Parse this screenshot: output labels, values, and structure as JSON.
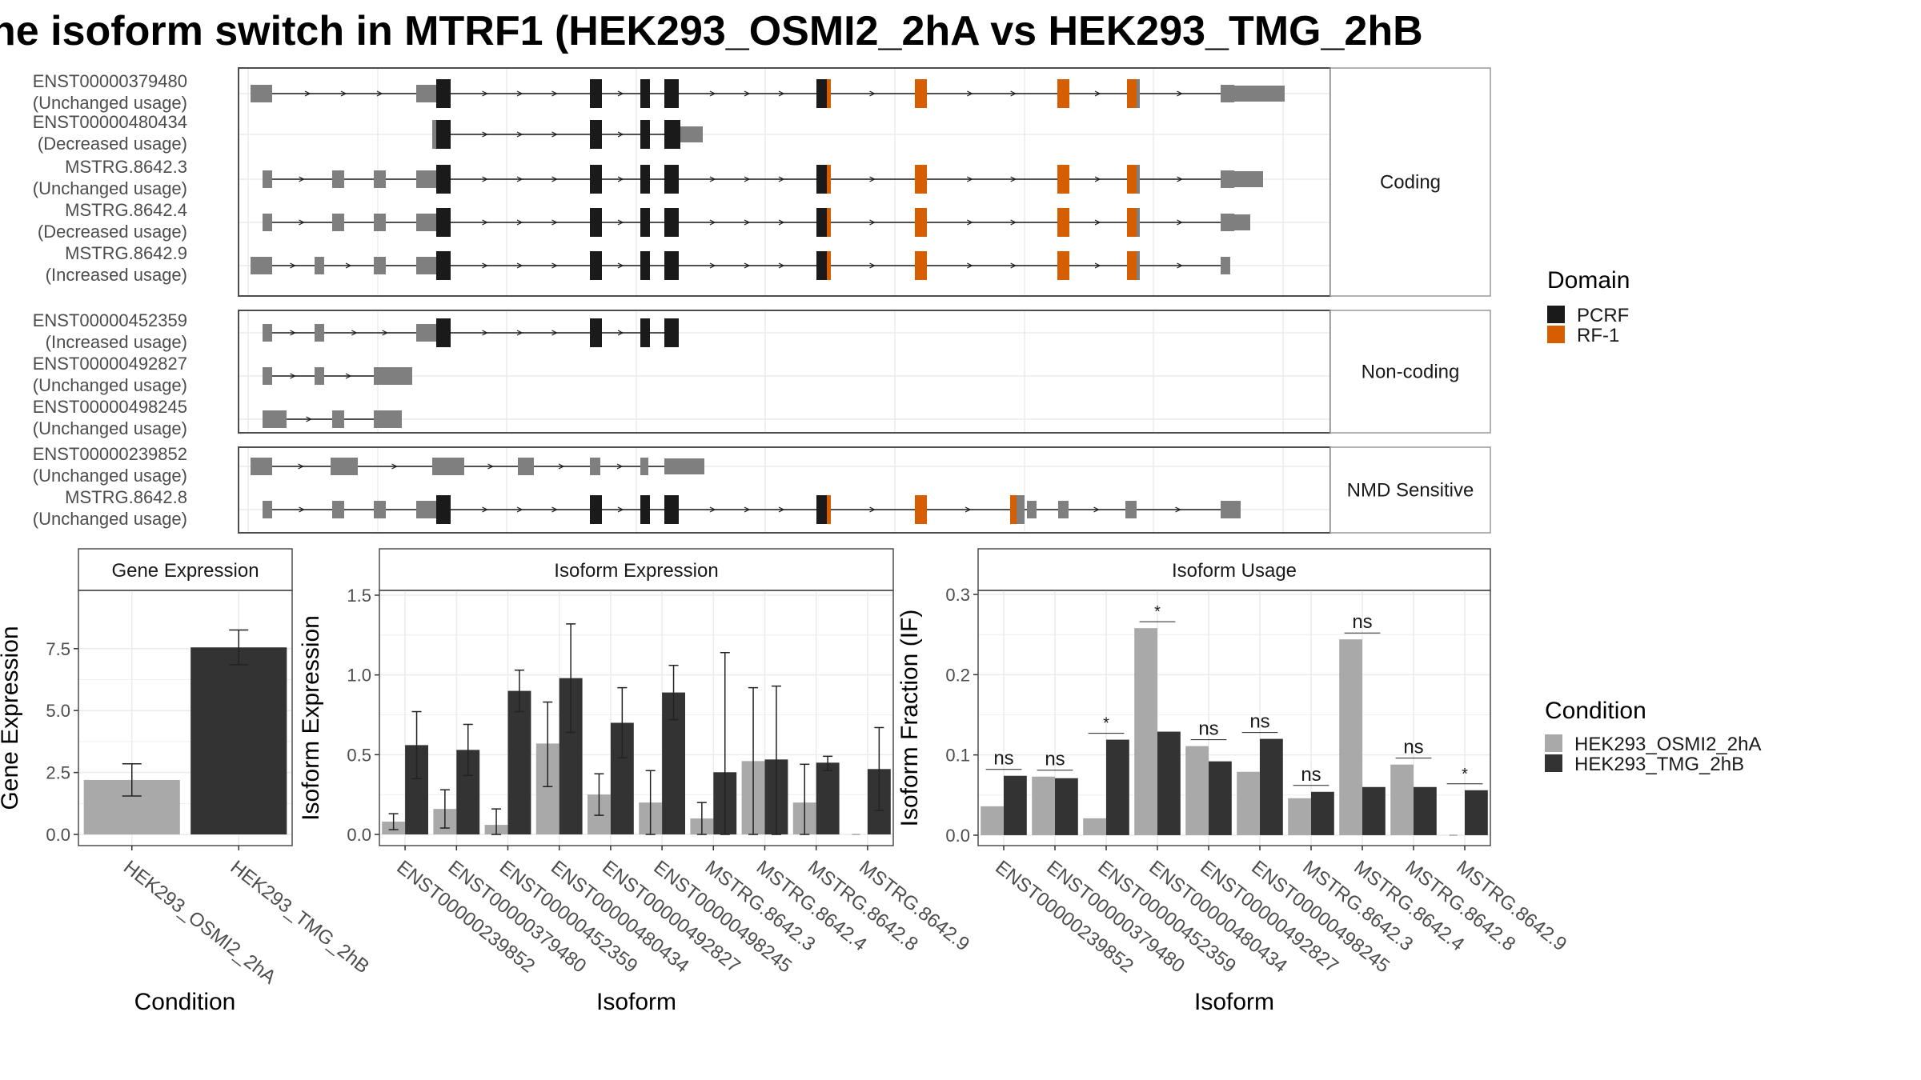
{
  "title": "he isoform switch in MTRF1 (HEK293_OSMI2_2hA vs HEK293_TMG_2hB",
  "colors": {
    "intron": "#1a1a1a",
    "noncoding_exon": "#7f7f7f",
    "pcrf": "#1a1a1a",
    "rf1": "#d55e00",
    "osmi2": "#a9a9a9",
    "tmg": "#333333",
    "panel_border": "#4d4d4d",
    "strip_fill": "#ffffff",
    "grid": "#ebebeb"
  },
  "domain_legend": {
    "title": "Domain",
    "items": [
      {
        "label": "PCRF",
        "color": "#1a1a1a"
      },
      {
        "label": "RF-1",
        "color": "#d55e00"
      }
    ]
  },
  "condition_legend": {
    "title": "Condition",
    "items": [
      {
        "label": "HEK293_OSMI2_2hA",
        "color": "#a9a9a9"
      },
      {
        "label": "HEK293_TMG_2hB",
        "color": "#333333"
      }
    ]
  },
  "transcript_panels": [
    {
      "strip": "Coding",
      "transcripts": [
        {
          "name": "ENST00000379480",
          "status": "(Unchanged usage)"
        },
        {
          "name": "ENST00000480434",
          "status": "(Decreased usage)"
        },
        {
          "name": "MSTRG.8642.3",
          "status": "(Unchanged usage)"
        },
        {
          "name": "MSTRG.8642.4",
          "status": "(Decreased usage)"
        },
        {
          "name": "MSTRG.8642.9",
          "status": "(Increased usage)"
        }
      ]
    },
    {
      "strip": "Non-coding",
      "transcripts": [
        {
          "name": "ENST00000452359",
          "status": "(Increased usage)"
        },
        {
          "name": "ENST00000492827",
          "status": "(Unchanged usage)"
        },
        {
          "name": "ENST00000498245",
          "status": "(Unchanged usage)"
        }
      ]
    },
    {
      "strip": "NMD Sensitive",
      "transcripts": [
        {
          "name": "ENST00000239852",
          "status": "(Unchanged usage)"
        },
        {
          "name": "MSTRG.8642.8",
          "status": "(Unchanged usage)"
        }
      ]
    }
  ],
  "chart_data": [
    {
      "type": "bar",
      "title": "Gene Expression",
      "xlabel": "Condition",
      "ylabel": "Gene Expression",
      "categories": [
        "HEK293_OSMI2_2hA",
        "HEK293_TMG_2hB"
      ],
      "values": [
        2.2,
        7.55
      ],
      "error_low": [
        1.55,
        6.85
      ],
      "error_high": [
        2.85,
        8.25
      ],
      "ylim": [
        -0.45,
        9.85
      ],
      "yticks": [
        0.0,
        2.5,
        5.0,
        7.5
      ],
      "ytick_labels": [
        "0.0",
        "2.5",
        "5.0",
        "7.5"
      ]
    },
    {
      "type": "bar",
      "title": "Isoform Expression",
      "xlabel": "Isoform",
      "ylabel": "Isoform Expression",
      "categories": [
        "ENST00000239852",
        "ENST00000379480",
        "ENST00000452359",
        "ENST00000480434",
        "ENST00000492827",
        "ENST00000498245",
        "MSTRG.8642.3",
        "MSTRG.8642.4",
        "MSTRG.8642.8",
        "MSTRG.8642.9"
      ],
      "ylim": [
        -0.07,
        1.53
      ],
      "yticks": [
        0.0,
        0.5,
        1.0,
        1.5
      ],
      "ytick_labels": [
        "0.0",
        "0.5",
        "1.0",
        "1.5"
      ],
      "series": [
        {
          "name": "HEK293_OSMI2_2hA",
          "values": [
            0.08,
            0.16,
            0.06,
            0.57,
            0.25,
            0.2,
            0.1,
            0.46,
            0.2,
            0.0
          ],
          "error_low": [
            0.03,
            0.04,
            0.0,
            0.3,
            0.12,
            0.0,
            0.0,
            0.0,
            0.0,
            0.0
          ],
          "error_high": [
            0.13,
            0.28,
            0.16,
            0.83,
            0.38,
            0.4,
            0.2,
            0.92,
            0.44,
            0.0
          ]
        },
        {
          "name": "HEK293_TMG_2hB",
          "values": [
            0.56,
            0.53,
            0.9,
            0.98,
            0.7,
            0.89,
            0.39,
            0.47,
            0.45,
            0.41
          ],
          "error_low": [
            0.35,
            0.37,
            0.77,
            0.64,
            0.48,
            0.72,
            0.0,
            0.0,
            0.4,
            0.15
          ],
          "error_high": [
            0.77,
            0.69,
            1.03,
            1.32,
            0.92,
            1.06,
            1.14,
            0.93,
            0.49,
            0.67
          ]
        }
      ]
    },
    {
      "type": "bar",
      "title": "Isoform Usage",
      "xlabel": "Isoform",
      "ylabel": "Isoform Fraction (IF)",
      "categories": [
        "ENST00000239852",
        "ENST00000379480",
        "ENST00000452359",
        "ENST00000480434",
        "ENST00000492827",
        "ENST00000498245",
        "MSTRG.8642.3",
        "MSTRG.8642.4",
        "MSTRG.8642.8",
        "MSTRG.8642.9"
      ],
      "ylim": [
        -0.013,
        0.305
      ],
      "yticks": [
        0.0,
        0.1,
        0.2,
        0.3
      ],
      "ytick_labels": [
        "0.0",
        "0.1",
        "0.2",
        "0.3"
      ],
      "significance": [
        "ns",
        "ns",
        "*",
        "*",
        "ns",
        "ns",
        "ns",
        "ns",
        "ns",
        "*"
      ],
      "series": [
        {
          "name": "HEK293_OSMI2_2hA",
          "values": [
            0.036,
            0.073,
            0.021,
            0.258,
            0.111,
            0.079,
            0.046,
            0.244,
            0.088,
            0.0
          ]
        },
        {
          "name": "HEK293_TMG_2hB",
          "values": [
            0.074,
            0.071,
            0.119,
            0.129,
            0.092,
            0.12,
            0.054,
            0.06,
            0.06,
            0.056
          ]
        }
      ]
    }
  ]
}
